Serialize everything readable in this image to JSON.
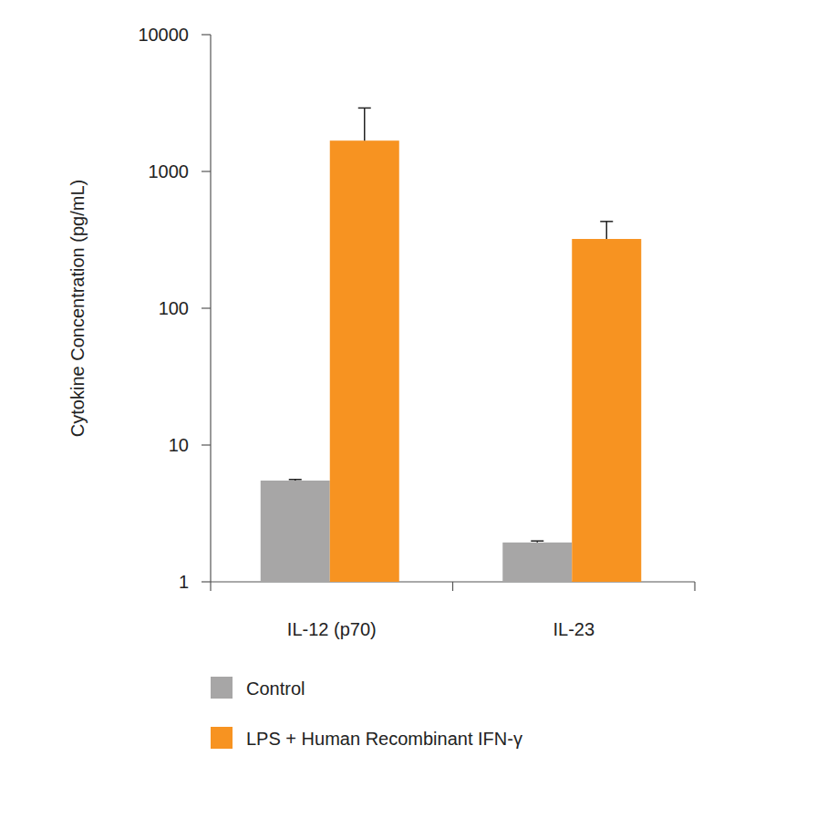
{
  "chart_data": {
    "type": "bar",
    "y_label": "Cytokine Concentration (pg/mL)",
    "categories": [
      "IL-12 (p70)",
      "IL-23"
    ],
    "series": [
      {
        "name": "Control",
        "color": "#a7a6a6",
        "values": [
          5.5,
          1.94
        ],
        "errors": [
          0.1,
          0.05
        ]
      },
      {
        "name": "LPS + Human Recombinant IFN-γ",
        "color": "#f79321",
        "values": [
          1680,
          321
        ],
        "errors": [
          1230,
          110
        ]
      }
    ],
    "ylim": [
      1,
      10000
    ],
    "yticks": [
      1,
      10,
      100,
      1000,
      10000
    ],
    "log": "y",
    "grid": false,
    "legend": "bottom"
  }
}
